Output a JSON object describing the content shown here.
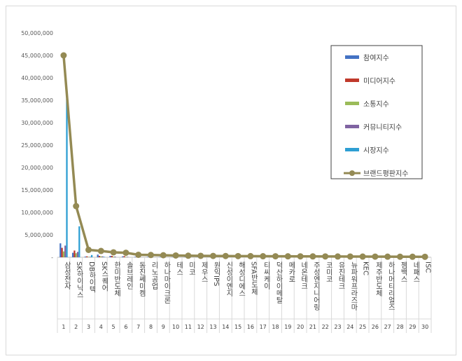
{
  "chart_data": {
    "type": "bar",
    "title": "",
    "xlabel": "",
    "ylabel": "",
    "ylim": [
      0,
      50000000
    ],
    "yticks": [
      "-",
      "5,000,000",
      "10,000,000",
      "15,000,000",
      "20,000,000",
      "25,000,000",
      "30,000,000",
      "35,000,000",
      "40,000,000",
      "45,000,000",
      "50,000,000"
    ],
    "grid": false,
    "legend_position": "top-right",
    "categories": [
      "삼성전자",
      "SK하이닉스",
      "DB하이텍",
      "SK스퀘어",
      "한미반도체",
      "솔브레인",
      "동진쎄미켐",
      "리노공업",
      "하나마이크론",
      "테스",
      "미코",
      "제우스",
      "원익IPS",
      "신성이엔지",
      "해성디에스",
      "SFA반도체",
      "티씨케이",
      "덕산하이메탈",
      "메카로",
      "네온테크",
      "주성엔지니어링",
      "코미코",
      "유진테크",
      "뉴파워프라즈마",
      "KEC",
      "제주반도체",
      "하나머티리얼즈",
      "젬백스",
      "네패스",
      "ISC"
    ],
    "ranks": [
      "1",
      "2",
      "3",
      "4",
      "5",
      "6",
      "7",
      "8",
      "9",
      "10",
      "11",
      "12",
      "13",
      "14",
      "15",
      "16",
      "17",
      "18",
      "19",
      "20",
      "21",
      "22",
      "23",
      "24",
      "25",
      "26",
      "27",
      "28",
      "29",
      "30"
    ],
    "series": [
      {
        "name": "참여지수",
        "color": "#4472c4",
        "kind": "bar",
        "values": [
          3100000,
          1000000,
          150000,
          600000,
          300000,
          200000,
          100000,
          80000,
          80000,
          60000,
          50000,
          50000,
          50000,
          40000,
          40000,
          40000,
          30000,
          30000,
          30000,
          30000,
          30000,
          20000,
          20000,
          20000,
          20000,
          20000,
          20000,
          20000,
          20000,
          20000
        ]
      },
      {
        "name": "미디어지수",
        "color": "#c0392b",
        "kind": "bar",
        "values": [
          2100000,
          1500000,
          200000,
          300000,
          300000,
          250000,
          150000,
          100000,
          100000,
          80000,
          60000,
          60000,
          60000,
          50000,
          50000,
          50000,
          40000,
          40000,
          40000,
          40000,
          40000,
          30000,
          30000,
          30000,
          30000,
          30000,
          30000,
          30000,
          30000,
          30000
        ]
      },
      {
        "name": "소통지수",
        "color": "#9bbb59",
        "kind": "bar",
        "values": [
          1300000,
          900000,
          100000,
          200000,
          150000,
          100000,
          80000,
          60000,
          60000,
          50000,
          40000,
          40000,
          40000,
          30000,
          30000,
          30000,
          20000,
          20000,
          20000,
          20000,
          20000,
          20000,
          20000,
          20000,
          20000,
          20000,
          20000,
          20000,
          20000,
          20000
        ]
      },
      {
        "name": "커뮤니티지수",
        "color": "#8064a2",
        "kind": "bar",
        "values": [
          2600000,
          1200000,
          100000,
          200000,
          150000,
          100000,
          80000,
          60000,
          60000,
          50000,
          40000,
          40000,
          40000,
          30000,
          30000,
          30000,
          20000,
          20000,
          20000,
          20000,
          20000,
          20000,
          20000,
          20000,
          20000,
          20000,
          20000,
          20000,
          20000,
          20000
        ]
      },
      {
        "name": "시장지수",
        "color": "#2e9fd3",
        "kind": "bar",
        "values": [
          35300000,
          6900000,
          500000,
          100000,
          0,
          0,
          0,
          0,
          0,
          0,
          0,
          0,
          0,
          0,
          0,
          0,
          0,
          0,
          0,
          0,
          0,
          0,
          0,
          0,
          0,
          0,
          0,
          0,
          0,
          0
        ]
      },
      {
        "name": "브랜드평판지수",
        "color": "#948a54",
        "kind": "line",
        "values": [
          45000000,
          11400000,
          1650000,
          1400000,
          1100000,
          1000000,
          550000,
          500000,
          450000,
          400000,
          350000,
          320000,
          300000,
          280000,
          260000,
          250000,
          230000,
          220000,
          210000,
          200000,
          190000,
          180000,
          170000,
          160000,
          150000,
          140000,
          130000,
          120000,
          110000,
          100000
        ]
      }
    ]
  }
}
